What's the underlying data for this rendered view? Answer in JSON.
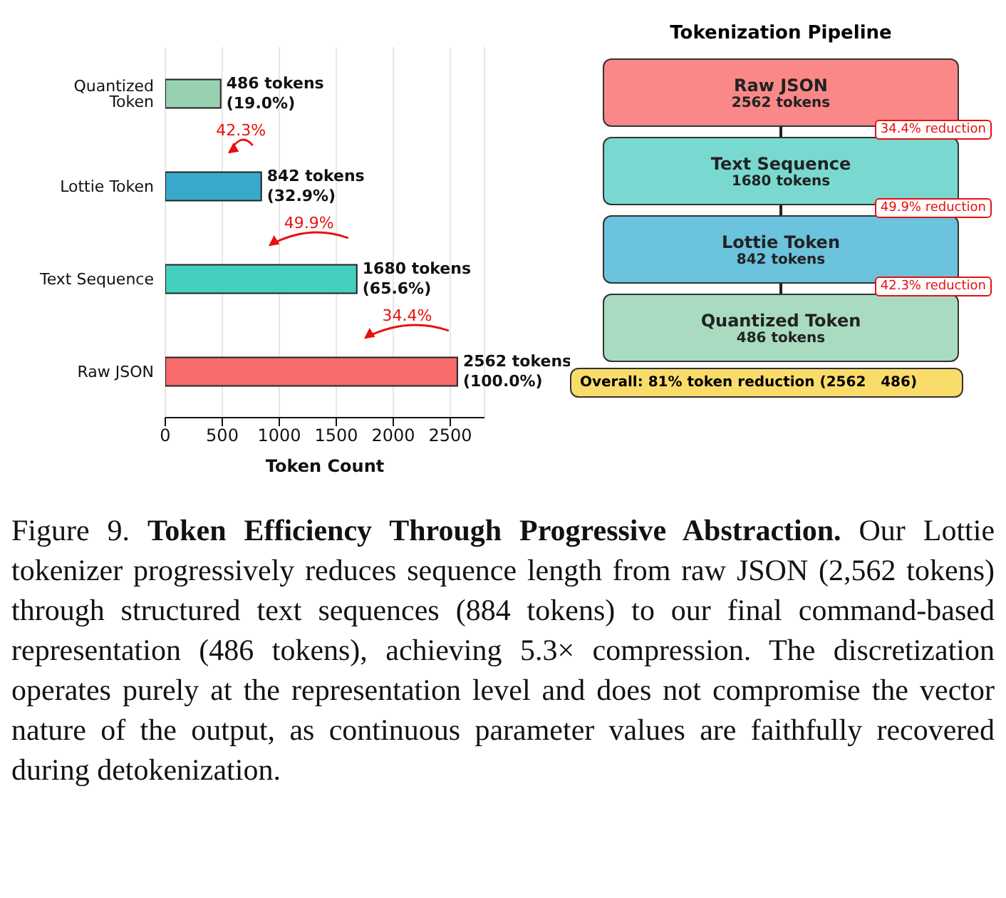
{
  "chart_data": [
    {
      "type": "bar",
      "orientation": "horizontal",
      "categories": [
        "Quantized Token",
        "Lottie Token",
        "Text Sequence",
        "Raw JSON"
      ],
      "values": [
        486,
        842,
        1680,
        2562
      ],
      "colors": [
        "#97d1b0",
        "#39a9cb",
        "#45cfbf",
        "#f76b6b"
      ],
      "value_labels": [
        "486 tokens\n(19.0%)",
        "842 tokens\n(32.9%)",
        "1680 tokens\n(65.6%)",
        "2562 tokens\n(100.0%)"
      ],
      "xlim": [
        0,
        2800
      ],
      "xticks": [
        0,
        500,
        1000,
        1500,
        2000,
        2500
      ],
      "xlabel": "Token Count",
      "grid": "x",
      "annotations": [
        "42.3%",
        "49.9%",
        "34.4%",
        "Figure 9.",
        "Token Efficiency Through Progressive Abstraction.",
        "Our Lottie tokenizer progressively reduces sequence length from raw JSON (2,562 tokens) through structured text sequences (884 tokens) to our final command-based representation (486 tokens), achieving 5.3× compression. The discretization operates purely at the representation level and does not compromise the vector nature of the output, as continuous parameter values are faithfully recovered during detokenization."
      ]
    },
    {
      "type": "other",
      "title": "Tokenization Pipeline",
      "categories": [
        "Raw JSON",
        "Text Sequence",
        "Lottie Token",
        "Quantized Token"
      ],
      "colors": [
        "#fa8888",
        "#79d9d0",
        "#6bc3dd",
        "#a9dbc0"
      ],
      "value_labels": [
        "2562 tokens",
        "1680 tokens",
        "842 tokens",
        "486 tokens"
      ],
      "annotations": [
        "34.4% reduction",
        "49.9% reduction",
        "42.3% reduction",
        "Overall: 81% token reduction (2562   486)"
      ]
    }
  ]
}
